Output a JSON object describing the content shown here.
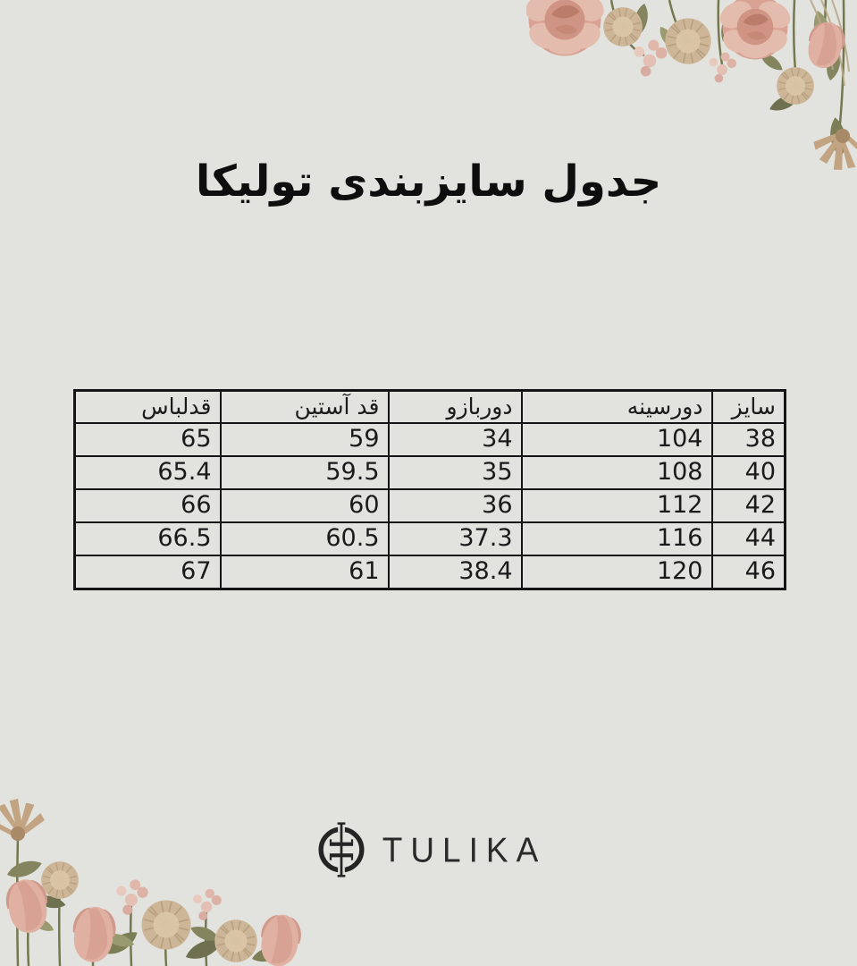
{
  "page": {
    "title": "جدول سایزبندی تولیکا",
    "background_color": "#e2e3de"
  },
  "table": {
    "columns": [
      "سایز",
      "دورسینه",
      "دوربازو",
      "قد آستین",
      "قدلباس"
    ],
    "rows": [
      [
        "38",
        "104",
        "34",
        "59",
        "65"
      ],
      [
        "40",
        "108",
        "35",
        "59.5",
        "65.4"
      ],
      [
        "42",
        "112",
        "36",
        "60",
        "66"
      ],
      [
        "44",
        "116",
        "37.3",
        "60.5",
        "66.5"
      ],
      [
        "46",
        "120",
        "38.4",
        "61",
        "67"
      ]
    ],
    "border_color": "#141414"
  },
  "brand": {
    "name": "TULIKA",
    "logo_icon": "circle-mirrored-t-monogram",
    "logo_color": "#2a2a2a"
  },
  "decorations": {
    "top_right": "dried-flower-bouquet-hanging",
    "bottom_left": "dried-flower-bouquet-rising",
    "colors": {
      "pink": "#dcab9f",
      "light_pink": "#e4bcae",
      "cream": "#cdb698",
      "olive": "#84845e",
      "stem": "#75774e",
      "dried": "#c3a482"
    }
  }
}
